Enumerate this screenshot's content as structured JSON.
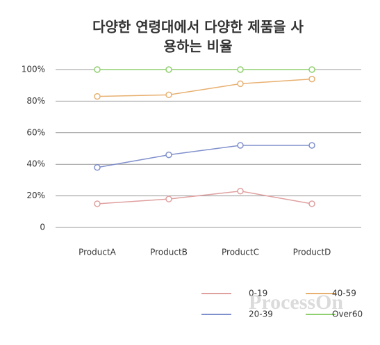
{
  "chart_data": {
    "type": "line",
    "title": [
      "다양한 연령대에서 다양한 제품을 사",
      "용하는 비율"
    ],
    "categories": [
      "ProductA",
      "ProductB",
      "ProductC",
      "ProductD"
    ],
    "series": [
      {
        "name": "0-19",
        "color": "#e0a0a0",
        "values": [
          15,
          18,
          23,
          15
        ]
      },
      {
        "name": "20-39",
        "color": "#8090cc",
        "values": [
          38,
          46,
          52,
          52
        ]
      },
      {
        "name": "40-59",
        "color": "#e8b070",
        "values": [
          83,
          84,
          91,
          94
        ]
      },
      {
        "name": "Over60",
        "color": "#90d070",
        "values": [
          100,
          100,
          100,
          100
        ]
      }
    ],
    "ylim": [
      0,
      100
    ],
    "yticks": [
      0,
      {
        "value": 20,
        "label": "20%"
      },
      {
        "value": 40,
        "label": "40%"
      },
      {
        "value": 60,
        "label": "60%"
      },
      {
        "value": 80,
        "label": "80%"
      },
      {
        "value": 100,
        "label": "100%"
      }
    ],
    "grid": true,
    "watermark": "ProcessOn"
  }
}
